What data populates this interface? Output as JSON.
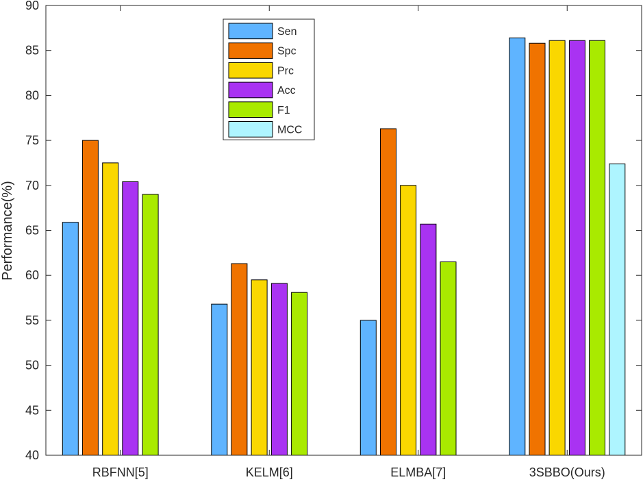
{
  "chart_data": {
    "type": "bar",
    "title": "",
    "xlabel": "",
    "ylabel": "Performance(%)",
    "ylim": [
      40,
      90
    ],
    "yticks": [
      40,
      45,
      50,
      55,
      60,
      65,
      70,
      75,
      80,
      85,
      90
    ],
    "grid": false,
    "legend_position": "top-center",
    "categories": [
      "RBFNN[5]",
      "KELM[6]",
      "ELMBA[7]",
      "3SBBO(Ours)"
    ],
    "series": [
      {
        "name": "Sen",
        "color": "#5fb4ff",
        "values": [
          65.9,
          56.8,
          55.0,
          86.4
        ]
      },
      {
        "name": "Spc",
        "color": "#f07300",
        "values": [
          75.0,
          61.3,
          76.3,
          85.8
        ]
      },
      {
        "name": "Prc",
        "color": "#fad700",
        "values": [
          72.5,
          59.5,
          70.0,
          86.1
        ]
      },
      {
        "name": "Acc",
        "color": "#a933f2",
        "values": [
          70.4,
          59.1,
          65.7,
          86.1
        ]
      },
      {
        "name": "F1",
        "color": "#a9ea00",
        "values": [
          69.0,
          58.1,
          61.5,
          86.1
        ]
      },
      {
        "name": "MCC",
        "color": "#aef5ff",
        "values": [
          null,
          null,
          null,
          72.4
        ]
      }
    ]
  }
}
